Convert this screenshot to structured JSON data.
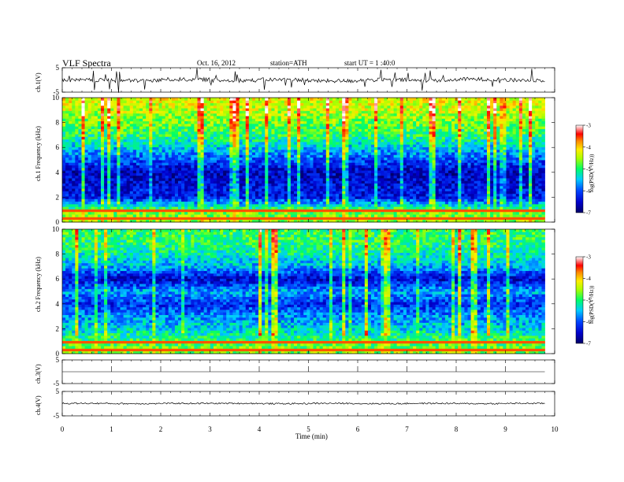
{
  "header": {
    "title": "VLF Spectra",
    "date": "Oct. 16, 2012",
    "station": "station=ATH",
    "start": "start UT = 1 :40:0"
  },
  "chart_data": [
    {
      "type": "line",
      "panel": "ch1-waveform",
      "ylabel": "ch.1(V)",
      "ylim": [
        -5,
        5
      ],
      "yticks": [
        "5",
        "-5"
      ],
      "series": [
        {
          "values": [
            -0.1,
            -0.3,
            0.2,
            -0.2,
            0.1,
            -0.4,
            0.0,
            -0.2,
            0.3,
            -0.1
          ]
        }
      ]
    },
    {
      "type": "heatmap",
      "panel": "ch1-spectrogram",
      "ylabel": "ch.1 Frequency (kHz)",
      "ylim": [
        0,
        10
      ],
      "yticks": [
        "0",
        "2",
        "4",
        "6",
        "8",
        "10"
      ],
      "colorbar": {
        "label": "log(PSD(V²/Hz))",
        "range": [
          -7,
          -3
        ],
        "ticks": [
          "-3",
          "-4",
          "-5",
          "-6",
          "-7"
        ]
      },
      "profile": {
        "freq_khz": [
          0,
          1,
          2,
          3,
          4,
          5,
          6,
          7,
          8,
          9,
          10
        ],
        "log_psd": [
          -4.5,
          -4.8,
          -6.3,
          -6.4,
          -6.6,
          -6.0,
          -5.5,
          -5.0,
          -4.7,
          -4.4,
          -4.2
        ]
      }
    },
    {
      "type": "heatmap",
      "panel": "ch2-spectrogram",
      "ylabel": "ch.2 Frequency (kHz)",
      "ylim": [
        0,
        10
      ],
      "yticks": [
        "0",
        "2",
        "4",
        "6",
        "8",
        "10"
      ],
      "colorbar": {
        "label": "log(PSD(V²/Hz))",
        "range": [
          -7,
          -3
        ],
        "ticks": [
          "-3",
          "-4",
          "-5",
          "-6",
          "-7"
        ]
      },
      "profile": {
        "freq_khz": [
          0,
          1,
          2,
          3,
          4,
          5,
          6,
          7,
          8,
          9,
          10
        ],
        "log_psd": [
          -4.6,
          -4.9,
          -5.4,
          -5.7,
          -6.2,
          -5.6,
          -6.5,
          -5.6,
          -5.2,
          -5.0,
          -4.9
        ]
      }
    },
    {
      "type": "line",
      "panel": "ch3-waveform",
      "ylabel": "ch.3(V)",
      "ylim": [
        -5,
        5
      ],
      "yticks": [
        "5",
        "-5"
      ],
      "series": [
        {
          "values": [
            0,
            0,
            0,
            0,
            0,
            0,
            0,
            0,
            0,
            0
          ]
        }
      ]
    },
    {
      "type": "line",
      "panel": "ch4-waveform",
      "ylabel": "ch.4(V)",
      "ylim": [
        -5,
        5
      ],
      "yticks": [
        "5",
        "-5"
      ],
      "series": [
        {
          "values": [
            0.1,
            0.0,
            0.1,
            0.1,
            0.0,
            0.1,
            0.0,
            0.1,
            0.0,
            0.1
          ]
        }
      ]
    }
  ],
  "xaxis": {
    "label": "Time (min)",
    "xlim": [
      0,
      10
    ],
    "ticks": [
      "0",
      "1",
      "2",
      "3",
      "4",
      "5",
      "6",
      "7",
      "8",
      "9",
      "10"
    ],
    "data_end_min": 9.8
  }
}
